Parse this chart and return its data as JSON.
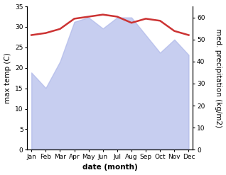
{
  "months": [
    "Jan",
    "Feb",
    "Mar",
    "Apr",
    "May",
    "Jun",
    "Jul",
    "Aug",
    "Sep",
    "Oct",
    "Nov",
    "Dec"
  ],
  "month_positions": [
    0,
    1,
    2,
    3,
    4,
    5,
    6,
    7,
    8,
    9,
    10,
    11
  ],
  "precipitation": [
    35,
    28,
    40,
    58,
    60,
    55,
    60,
    60,
    52,
    44,
    50,
    43
  ],
  "temperature": [
    28,
    28.5,
    29.5,
    32,
    32.5,
    33,
    32.5,
    31,
    32,
    31.5,
    29,
    28
  ],
  "temp_ylim": [
    0,
    35
  ],
  "precip_ylim": [
    0,
    65
  ],
  "temp_yticks": [
    0,
    5,
    10,
    15,
    20,
    25,
    30,
    35
  ],
  "precip_yticks": [
    0,
    10,
    20,
    30,
    40,
    50,
    60
  ],
  "xlabel": "date (month)",
  "ylabel_left": "max temp (C)",
  "ylabel_right": "med. precipitation (kg/m2)",
  "fill_color": "#aab4e8",
  "fill_alpha": 0.65,
  "line_color": "#cc3333",
  "line_width": 1.8,
  "bg_color": "#ffffff",
  "label_fontsize": 7.5,
  "tick_fontsize": 6.5
}
